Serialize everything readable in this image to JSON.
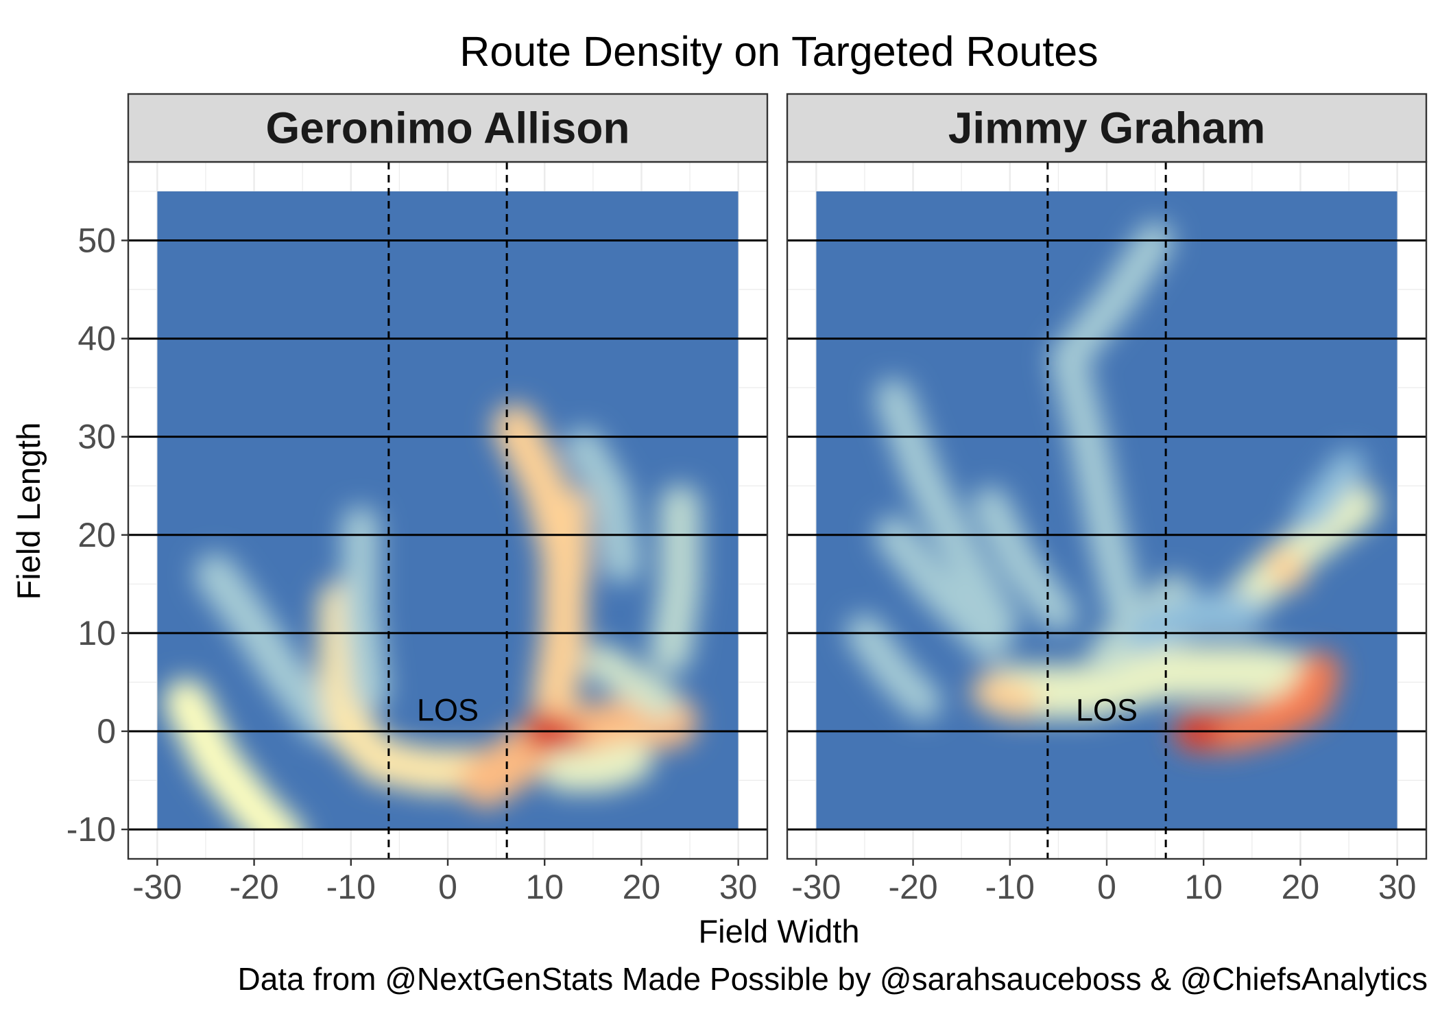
{
  "chart_data": {
    "type": "heatmap",
    "title": "Route Density on Targeted Routes",
    "xlabel": "Field Width",
    "ylabel": "Field Length",
    "caption": "Data from @NextGenStats Made Possible by @sarahsauceboss & @ChiefsAnalytics",
    "xlim": [
      -33,
      33
    ],
    "ylim": [
      -13,
      58
    ],
    "x_ticks": [
      -30,
      -20,
      -10,
      0,
      10,
      20,
      30
    ],
    "x_tick_labels": [
      "-30",
      "-20",
      "-10",
      "0",
      "10",
      "20",
      "30"
    ],
    "y_ticks": [
      -10,
      0,
      10,
      20,
      30,
      40,
      50
    ],
    "y_tick_labels": [
      "-10",
      "0",
      "10",
      "20",
      "30",
      "40",
      "50"
    ],
    "density_extent": {
      "x": [
        -30,
        30
      ],
      "y": [
        -10,
        55
      ]
    },
    "hash_marks_x": [
      -6.1,
      6.1
    ],
    "yard_lines_y": [
      -10,
      0,
      10,
      20,
      30,
      40,
      50
    ],
    "annotation": {
      "label": "LOS",
      "x": 0,
      "y": 2.2
    },
    "colors": {
      "low": "#4575b4",
      "mid_low": "#91bfdb",
      "mid": "#ffffbf",
      "mid_high": "#fc8d59",
      "high": "#d73027",
      "strip": "#d9d9d9",
      "grid": "#ebebeb"
    },
    "panels": [
      {
        "name": "Geronimo Allison",
        "density_paths": [
          {
            "points": [
              [
                -27,
                3
              ],
              [
                -24,
                -3
              ],
              [
                -20,
                -8
              ],
              [
                -17,
                -11
              ]
            ],
            "weight": 0.5,
            "width": 2.2
          },
          {
            "points": [
              [
                -24,
                16
              ],
              [
                -21,
                12
              ],
              [
                -17,
                6
              ],
              [
                -13,
                1
              ]
            ],
            "weight": 0.3,
            "width": 2.0
          },
          {
            "points": [
              [
                -11,
                13
              ],
              [
                -11,
                6
              ],
              [
                -10,
                0
              ],
              [
                -7,
                -3
              ],
              [
                -2,
                -4
              ],
              [
                3,
                -4
              ]
            ],
            "weight": 0.55,
            "width": 2.2
          },
          {
            "points": [
              [
                -9,
                21
              ],
              [
                -9,
                12
              ],
              [
                -8,
                4
              ]
            ],
            "weight": 0.3,
            "width": 1.8
          },
          {
            "points": [
              [
                4,
                -5
              ],
              [
                7,
                -3
              ],
              [
                11,
                0
              ],
              [
                15,
                0
              ],
              [
                20,
                1
              ],
              [
                23,
                1
              ]
            ],
            "weight": 0.65,
            "width": 2.6
          },
          {
            "points": [
              [
                7,
                31
              ],
              [
                10,
                25
              ],
              [
                12,
                18
              ],
              [
                12,
                10
              ],
              [
                11,
                3
              ]
            ],
            "weight": 0.6,
            "width": 2.2
          },
          {
            "points": [
              [
                10,
                0
              ],
              [
                12,
                -1
              ]
            ],
            "weight": 1.0,
            "width": 2.0
          },
          {
            "points": [
              [
                13,
                23
              ],
              [
                13,
                16
              ]
            ],
            "weight": 0.6,
            "width": 1.6
          },
          {
            "points": [
              [
                14,
                29
              ],
              [
                17,
                24
              ],
              [
                18,
                17
              ]
            ],
            "weight": 0.3,
            "width": 1.8
          },
          {
            "points": [
              [
                24,
                23
              ],
              [
                24,
                15
              ],
              [
                23,
                8
              ]
            ],
            "weight": 0.35,
            "width": 2.0
          },
          {
            "points": [
              [
                16,
                7
              ],
              [
                19,
                5
              ],
              [
                22,
                3
              ]
            ],
            "weight": 0.4,
            "width": 1.8
          },
          {
            "points": [
              [
                12,
                -4
              ],
              [
                16,
                -4
              ],
              [
                19,
                -3
              ]
            ],
            "weight": 0.45,
            "width": 2.0
          }
        ]
      },
      {
        "name": "Jimmy Graham",
        "density_paths": [
          {
            "points": [
              [
                -22,
                34
              ],
              [
                -19,
                26
              ],
              [
                -15,
                18
              ],
              [
                -11,
                11
              ]
            ],
            "weight": 0.3,
            "width": 1.8
          },
          {
            "points": [
              [
                -22,
                20
              ],
              [
                -18,
                15
              ],
              [
                -12,
                9
              ]
            ],
            "weight": 0.3,
            "width": 1.8
          },
          {
            "points": [
              [
                -12,
                23
              ],
              [
                -9,
                17
              ],
              [
                -5,
                12
              ]
            ],
            "weight": 0.3,
            "width": 1.8
          },
          {
            "points": [
              [
                -25,
                10
              ],
              [
                -22,
                6
              ],
              [
                -19,
                3
              ]
            ],
            "weight": 0.3,
            "width": 1.8
          },
          {
            "points": [
              [
                -4,
                38
              ],
              [
                -2,
                30
              ],
              [
                0,
                20
              ],
              [
                2,
                12
              ],
              [
                4,
                7
              ]
            ],
            "weight": 0.3,
            "width": 1.8
          },
          {
            "points": [
              [
                5,
                50
              ],
              [
                1,
                44
              ],
              [
                -4,
                38
              ]
            ],
            "weight": 0.3,
            "width": 1.8
          },
          {
            "points": [
              [
                -10,
                4
              ],
              [
                -6,
                4
              ],
              [
                -2,
                4
              ],
              [
                2,
                5
              ],
              [
                6,
                6
              ],
              [
                10,
                6
              ],
              [
                16,
                6
              ],
              [
                21,
                5
              ]
            ],
            "weight": 0.45,
            "width": 2.6
          },
          {
            "points": [
              [
                -12,
                4
              ],
              [
                -9,
                3
              ]
            ],
            "weight": 0.6,
            "width": 1.8
          },
          {
            "points": [
              [
                0,
                8
              ],
              [
                4,
                11
              ],
              [
                7,
                14
              ]
            ],
            "weight": 0.35,
            "width": 1.8
          },
          {
            "points": [
              [
                9,
                0
              ],
              [
                13,
                0
              ],
              [
                17,
                1
              ],
              [
                21,
                3
              ],
              [
                22,
                6
              ]
            ],
            "weight": 0.8,
            "width": 2.0
          },
          {
            "points": [
              [
                9,
                0
              ],
              [
                10,
                0
              ]
            ],
            "weight": 1.0,
            "width": 1.6
          },
          {
            "points": [
              [
                14,
                13
              ],
              [
                18,
                17
              ],
              [
                22,
                20
              ],
              [
                26,
                23
              ]
            ],
            "weight": 0.45,
            "width": 2.0
          },
          {
            "points": [
              [
                18,
                17
              ],
              [
                19,
                16
              ]
            ],
            "weight": 0.6,
            "width": 1.6
          },
          {
            "points": [
              [
                21,
                22
              ],
              [
                25,
                27
              ]
            ],
            "weight": 0.25,
            "width": 1.6
          },
          {
            "points": [
              [
                4,
                10
              ],
              [
                9,
                12
              ],
              [
                14,
                12
              ]
            ],
            "weight": 0.25,
            "width": 2.0
          }
        ]
      }
    ]
  }
}
